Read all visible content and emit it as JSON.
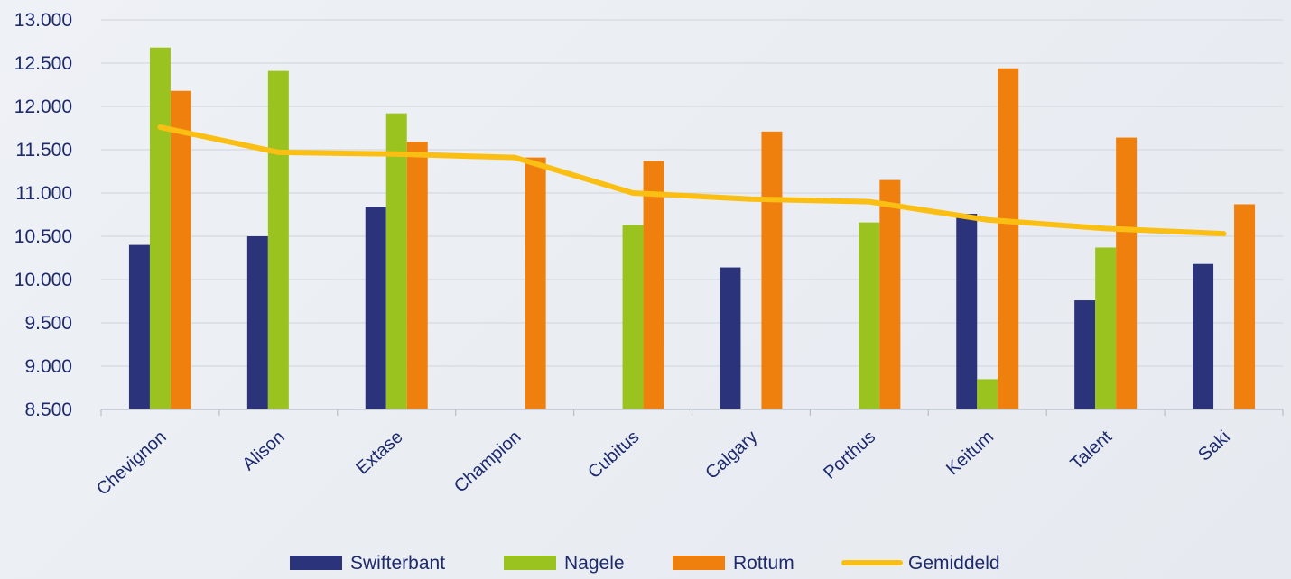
{
  "chart_data": {
    "type": "bar",
    "categories": [
      "Chevignon",
      "Alison",
      "Extase",
      "Champion",
      "Cubitus",
      "Calgary",
      "Porthus",
      "Keitum",
      "Talent",
      "Saki"
    ],
    "series": [
      {
        "name": "Swifterbant",
        "type": "bar",
        "color": "#2b337a",
        "values": [
          10400,
          10500,
          10840,
          null,
          null,
          10140,
          null,
          10760,
          9760,
          10180
        ]
      },
      {
        "name": "Nagele",
        "type": "bar",
        "color": "#9bc31f",
        "values": [
          12680,
          12410,
          11920,
          null,
          10630,
          null,
          10660,
          8850,
          10370,
          null
        ]
      },
      {
        "name": "Rottum",
        "type": "bar",
        "color": "#f0800e",
        "values": [
          12180,
          null,
          11590,
          11410,
          11370,
          11710,
          11150,
          12440,
          11640,
          10870
        ]
      },
      {
        "name": "Gemiddeld",
        "type": "line",
        "color": "#fbbf14",
        "values": [
          11760,
          11470,
          11450,
          11410,
          11000,
          10930,
          10900,
          10690,
          10590,
          10530
        ]
      }
    ],
    "y_ticks": [
      "8.500",
      "9.000",
      "9.500",
      "10.000",
      "10.500",
      "11.000",
      "11.500",
      "12.000",
      "12.500",
      "13.000"
    ],
    "ylim": [
      8500,
      13000
    ],
    "grid": true,
    "legend": "bottom"
  }
}
